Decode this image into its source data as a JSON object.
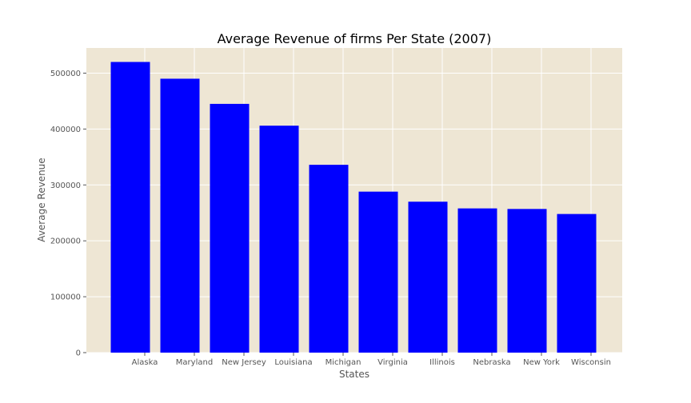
{
  "colors": {
    "bar": "#0000ff",
    "plot_background": "#eee6d4",
    "grid": "#ffffff",
    "tick_label": "#555555",
    "title": "#000000"
  },
  "chart_data": {
    "type": "bar",
    "title": "Average Revenue of firms Per State (2007)",
    "xlabel": "States",
    "ylabel": "Average Revenue",
    "categories": [
      "Alaska",
      "Maryland",
      "New Jersey",
      "Louisiana",
      "Michigan",
      "Virginia",
      "Illinois",
      "Nebraska",
      "New York",
      "Wisconsin"
    ],
    "values": [
      520000,
      490000,
      445000,
      406000,
      336000,
      288000,
      270000,
      258000,
      257000,
      248000
    ],
    "ylim": [
      0,
      545000
    ],
    "yticks": [
      "0",
      "100000",
      "200000",
      "300000",
      "400000",
      "500000"
    ],
    "ytick_values": [
      0,
      100000,
      200000,
      300000,
      400000,
      500000
    ],
    "grid": true,
    "legend": false
  }
}
